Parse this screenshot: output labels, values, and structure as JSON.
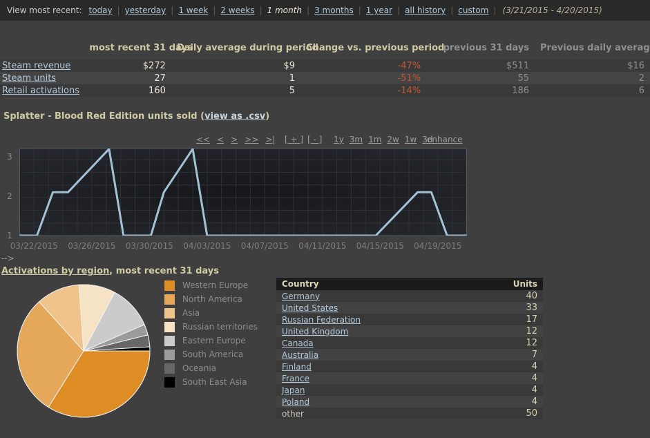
{
  "topbar": {
    "label": "View most recent:",
    "items": [
      {
        "label": "today",
        "selected": false
      },
      {
        "label": "yesterday",
        "selected": false
      },
      {
        "label": "1 week",
        "selected": false
      },
      {
        "label": "2 weeks",
        "selected": false
      },
      {
        "label": "1 month",
        "selected": true
      },
      {
        "label": "3 months",
        "selected": false
      },
      {
        "label": "1 year",
        "selected": false
      },
      {
        "label": "all history",
        "selected": false
      },
      {
        "label": "custom",
        "selected": false
      }
    ],
    "date_range": "(3/21/2015 - 4/20/2015)"
  },
  "summary": {
    "columns": [
      "",
      "most recent 31 days",
      "Daily average during period",
      "Change vs. previous period",
      "previous 31 days",
      "Previous daily average"
    ],
    "rows": [
      {
        "label": "Steam revenue",
        "values": [
          "$272",
          "$9",
          "-47%",
          "$511",
          "$16"
        ]
      },
      {
        "label": "Steam units",
        "values": [
          "27",
          "1",
          "-51%",
          "55",
          "2"
        ]
      },
      {
        "label": "Retail activations",
        "values": [
          "160",
          "5",
          "-14%",
          "186",
          "6"
        ]
      }
    ]
  },
  "units_chart_title": {
    "text": "Splatter - Blood Red Edition units sold",
    "paren_open": "(",
    "csv_link": "view as .csv",
    "paren_close": ")"
  },
  "chart_controls": {
    "nav": [
      "<<",
      "<",
      ">",
      ">>",
      ">|"
    ],
    "zoom_in": "[ + ]",
    "zoom_out": "[ - ]",
    "ranges": [
      "1y",
      "3m",
      "1m",
      "2w",
      "1w",
      "3d"
    ],
    "enhance": "enhance"
  },
  "arrow": "-->",
  "activations": {
    "link_label": "Activations by region",
    "title_suffix": ", most recent 31 days"
  },
  "country_table": {
    "headers": [
      "Country",
      "Units"
    ],
    "rows": [
      {
        "country": "Germany",
        "units": "40",
        "link": true
      },
      {
        "country": "United States",
        "units": "33",
        "link": true
      },
      {
        "country": "Russian Federation",
        "units": "17",
        "link": true
      },
      {
        "country": "United Kingdom",
        "units": "12",
        "link": true
      },
      {
        "country": "Canada",
        "units": "12",
        "link": true
      },
      {
        "country": "Australia",
        "units": "7",
        "link": true
      },
      {
        "country": "Finland",
        "units": "4",
        "link": true
      },
      {
        "country": "France",
        "units": "4",
        "link": true
      },
      {
        "country": "Japan",
        "units": "4",
        "link": true
      },
      {
        "country": "Poland",
        "units": "4",
        "link": true
      },
      {
        "country": "other",
        "units": "50",
        "link": false
      }
    ]
  },
  "chart_data": [
    {
      "type": "line",
      "title": "Splatter - Blood Red Edition units sold",
      "x_tick_labels": [
        "03/22/2015",
        "03/26/2015",
        "03/30/2015",
        "04/03/2015",
        "04/07/2015",
        "04/11/2015",
        "04/15/2015",
        "04/19/2015"
      ],
      "x_tick_positions": [
        1,
        5,
        9,
        13,
        17,
        21,
        25,
        29
      ],
      "x_range": [
        0,
        31
      ],
      "yticks": [
        1,
        2,
        3
      ],
      "ylim": [
        1,
        3.21
      ],
      "points": [
        [
          0,
          1
        ],
        [
          1.2,
          1
        ],
        [
          2.3,
          2.1
        ],
        [
          3.35,
          2.1
        ],
        [
          6.2,
          3.2
        ],
        [
          7.2,
          1
        ],
        [
          9.1,
          1
        ],
        [
          10,
          2.1
        ],
        [
          12,
          3.2
        ],
        [
          13,
          1
        ],
        [
          24.7,
          1
        ],
        [
          27.6,
          2.1
        ],
        [
          28.55,
          2.1
        ],
        [
          29.65,
          1
        ],
        [
          31,
          1
        ]
      ],
      "line_color": "#a3c2d6",
      "plot_bg": "#15171b",
      "grid_color": "#2e3237",
      "grid": true,
      "legend_position": "none"
    },
    {
      "type": "pie",
      "title": "Activations by region, most recent 31 days",
      "slices": [
        {
          "label": "Western Europe",
          "pct": 33.9,
          "color": "#dd8d24"
        },
        {
          "label": "North America",
          "pct": 29.4,
          "color": "#e5a85a"
        },
        {
          "label": "Asia",
          "pct": 10.6,
          "color": "#efc389"
        },
        {
          "label": "Russian territories",
          "pct": 8.9,
          "color": "#f6e3c6"
        },
        {
          "label": "Eastern Europe",
          "pct": 10.7,
          "color": "#cbcbcb"
        },
        {
          "label": "South America",
          "pct": 2.6,
          "color": "#9b9b9b"
        },
        {
          "label": "Oceania",
          "pct": 2.9,
          "color": "#676767"
        },
        {
          "label": "South East Asia",
          "pct": 1.0,
          "color": "#000000"
        }
      ],
      "legend_position": "right"
    }
  ],
  "colors": {
    "page_bg": "#3f3f3f",
    "topbar_bg": "#292929",
    "link": "#b4c8d9",
    "header_text": "#cfcaa3",
    "negative_pct": "#c4572e",
    "chart_line": "#a3c2d6",
    "table_header_bg": "#1b1b1b"
  }
}
